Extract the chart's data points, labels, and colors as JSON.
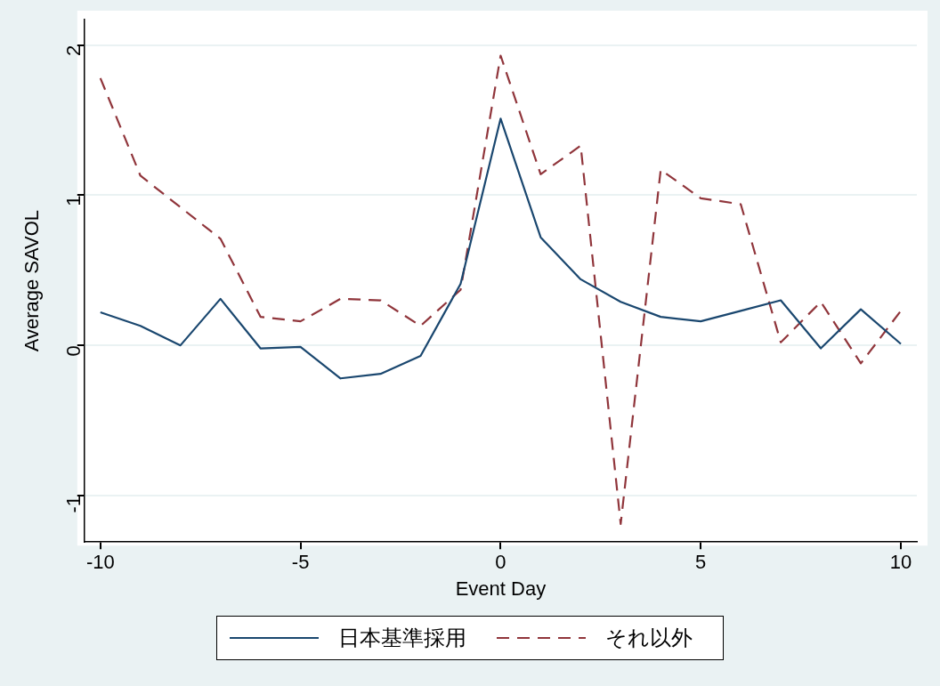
{
  "chart_data": {
    "type": "line",
    "xlabel": "Event Day",
    "ylabel": "Average SAVOL",
    "x": [
      -10,
      -9,
      -8,
      -7,
      -6,
      -5,
      -4,
      -3,
      -2,
      -1,
      0,
      1,
      2,
      3,
      4,
      5,
      6,
      7,
      8,
      9,
      10
    ],
    "series": [
      {
        "name": "日本基準採用",
        "color": "#1a476f",
        "line_style": "solid",
        "values": [
          0.22,
          0.13,
          0.0,
          0.31,
          -0.02,
          -0.01,
          -0.22,
          -0.19,
          -0.07,
          0.41,
          1.51,
          0.72,
          0.44,
          0.29,
          0.19,
          0.16,
          0.23,
          0.3,
          -0.02,
          0.24,
          0.01
        ]
      },
      {
        "name": "それ以外",
        "color": "#90353b",
        "line_style": "dashed",
        "values": [
          1.78,
          1.13,
          0.92,
          0.71,
          0.19,
          0.16,
          0.31,
          0.3,
          0.13,
          0.37,
          1.93,
          1.14,
          1.33,
          -1.19,
          1.17,
          0.98,
          0.94,
          0.02,
          0.29,
          -0.12,
          0.23
        ]
      }
    ],
    "xlim": [
      -10.4,
      10.4
    ],
    "xticks": [
      -10,
      -5,
      0,
      5,
      10
    ],
    "ylim": [
      -1.31,
      2.17
    ],
    "yticks": [
      -1,
      0,
      1,
      2
    ],
    "grid": "y",
    "legend": "bottom",
    "marker": "none"
  }
}
